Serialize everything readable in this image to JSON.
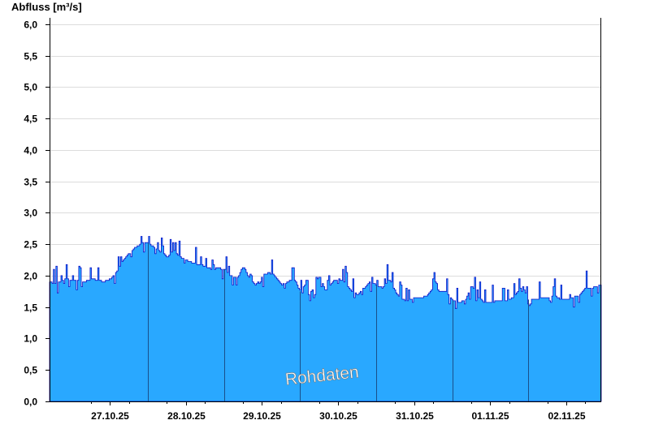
{
  "chart_data": {
    "type": "area",
    "ylabel": "Abfluss [m³/s]",
    "ylim": [
      0,
      6.1
    ],
    "y_ticks": [
      "0,0",
      "0,5",
      "1,0",
      "1,5",
      "2,0",
      "2,5",
      "3,0",
      "3,5",
      "4,0",
      "4,5",
      "5,0",
      "5,5",
      "6,0"
    ],
    "x_tick_labels": [
      "27.10.25",
      "28.10.25",
      "29.10.25",
      "30.10.25",
      "31.10.25",
      "01.11.25",
      "02.11.25"
    ],
    "x_start": "26.10.25 17:00",
    "x_end": "02.11.25 23:00",
    "grid": true,
    "watermark": "Rohdaten",
    "colors": {
      "fill": "#29a8ff",
      "line": "#0a10c8",
      "grid": "#dcdcdc",
      "separator": "#1a4f8a"
    },
    "series": [
      {
        "values": [
          [
            "26.10.25 17:00",
            1.9
          ],
          [
            "26.10.25 18:00",
            1.88
          ],
          [
            "26.10.25 20:00",
            1.9
          ],
          [
            "26.10.25 22:00",
            1.95
          ],
          [
            "27.10.25 00:00",
            1.93
          ],
          [
            "27.10.25 02:00",
            1.92
          ],
          [
            "27.10.25 04:00",
            1.9
          ],
          [
            "27.10.25 06:00",
            1.95
          ],
          [
            "27.10.25 08:00",
            1.93
          ],
          [
            "27.10.25 10:00",
            1.9
          ],
          [
            "27.10.25 12:00",
            1.95
          ],
          [
            "27.10.25 14:00",
            2.05
          ],
          [
            "27.10.25 16:00",
            2.25
          ],
          [
            "27.10.25 18:00",
            2.35
          ],
          [
            "27.10.25 20:00",
            2.45
          ],
          [
            "27.10.25 22:00",
            2.52
          ],
          [
            "28.10.25 00:00",
            2.52
          ],
          [
            "28.10.25 02:00",
            2.45
          ],
          [
            "28.10.25 04:00",
            2.38
          ],
          [
            "28.10.25 06:00",
            2.3
          ],
          [
            "28.10.25 08:00",
            2.4
          ],
          [
            "28.10.25 10:00",
            2.3
          ],
          [
            "28.10.25 12:00",
            2.25
          ],
          [
            "28.10.25 14:00",
            2.2
          ],
          [
            "28.10.25 16:00",
            2.18
          ],
          [
            "28.10.25 18:00",
            2.15
          ],
          [
            "28.10.25 20:00",
            2.1
          ],
          [
            "28.10.25 22:00",
            2.12
          ],
          [
            "29.10.25 00:00",
            2.1
          ],
          [
            "29.10.25 02:00",
            2.0
          ],
          [
            "29.10.25 04:00",
            1.95
          ],
          [
            "29.10.25 06:00",
            2.15
          ],
          [
            "29.10.25 08:00",
            1.95
          ],
          [
            "29.10.25 10:00",
            1.85
          ],
          [
            "29.10.25 12:00",
            2.0
          ],
          [
            "29.10.25 14:00",
            2.05
          ],
          [
            "29.10.25 16:00",
            2.0
          ],
          [
            "29.10.25 18:00",
            1.85
          ],
          [
            "29.10.25 20:00",
            1.9
          ],
          [
            "29.10.25 22:00",
            1.95
          ],
          [
            "30.10.25 00:00",
            1.75
          ],
          [
            "30.10.25 02:00",
            1.65
          ],
          [
            "30.10.25 04:00",
            1.8
          ],
          [
            "30.10.25 06:00",
            2.0
          ],
          [
            "30.10.25 08:00",
            1.75
          ],
          [
            "30.10.25 10:00",
            1.9
          ],
          [
            "30.10.25 12:00",
            1.95
          ],
          [
            "30.10.25 14:00",
            1.9
          ],
          [
            "30.10.25 16:00",
            1.75
          ],
          [
            "30.10.25 18:00",
            1.7
          ],
          [
            "30.10.25 20:00",
            1.8
          ],
          [
            "30.10.25 22:00",
            1.9
          ],
          [
            "31.10.25 00:00",
            1.85
          ],
          [
            "31.10.25 02:00",
            1.8
          ],
          [
            "31.10.25 04:00",
            1.95
          ],
          [
            "31.10.25 06:00",
            1.75
          ],
          [
            "31.10.25 08:00",
            1.62
          ],
          [
            "31.10.25 10:00",
            1.6
          ],
          [
            "31.10.25 12:00",
            1.65
          ],
          [
            "31.10.25 14:00",
            1.65
          ],
          [
            "31.10.25 16:00",
            1.68
          ],
          [
            "31.10.25 18:00",
            1.8
          ],
          [
            "31.10.25 20:00",
            1.75
          ],
          [
            "31.10.25 22:00",
            1.75
          ],
          [
            "01.11.25 00:00",
            1.6
          ],
          [
            "01.11.25 02:00",
            1.58
          ],
          [
            "01.11.25 04:00",
            1.6
          ],
          [
            "01.11.25 06:00",
            1.85
          ],
          [
            "01.11.25 08:00",
            1.65
          ],
          [
            "01.11.25 10:00",
            1.58
          ],
          [
            "01.11.25 12:00",
            1.57
          ],
          [
            "01.11.25 14:00",
            1.6
          ],
          [
            "01.11.25 16:00",
            1.6
          ],
          [
            "01.11.25 18:00",
            1.62
          ],
          [
            "01.11.25 20:00",
            1.7
          ],
          [
            "01.11.25 22:00",
            1.85
          ],
          [
            "02.11.25 00:00",
            1.62
          ],
          [
            "02.11.25 02:00",
            1.62
          ],
          [
            "02.11.25 04:00",
            1.65
          ],
          [
            "02.11.25 06:00",
            1.65
          ],
          [
            "02.11.25 08:00",
            1.7
          ],
          [
            "02.11.25 10:00",
            1.62
          ],
          [
            "02.11.25 12:00",
            1.62
          ],
          [
            "02.11.25 14:00",
            1.65
          ],
          [
            "02.11.25 16:00",
            1.7
          ],
          [
            "02.11.25 18:00",
            1.8
          ],
          [
            "02.11.25 20:00",
            1.8
          ],
          [
            "02.11.25 22:00",
            1.85
          ],
          [
            "02.11.25 23:00",
            1.85
          ]
        ]
      }
    ]
  }
}
